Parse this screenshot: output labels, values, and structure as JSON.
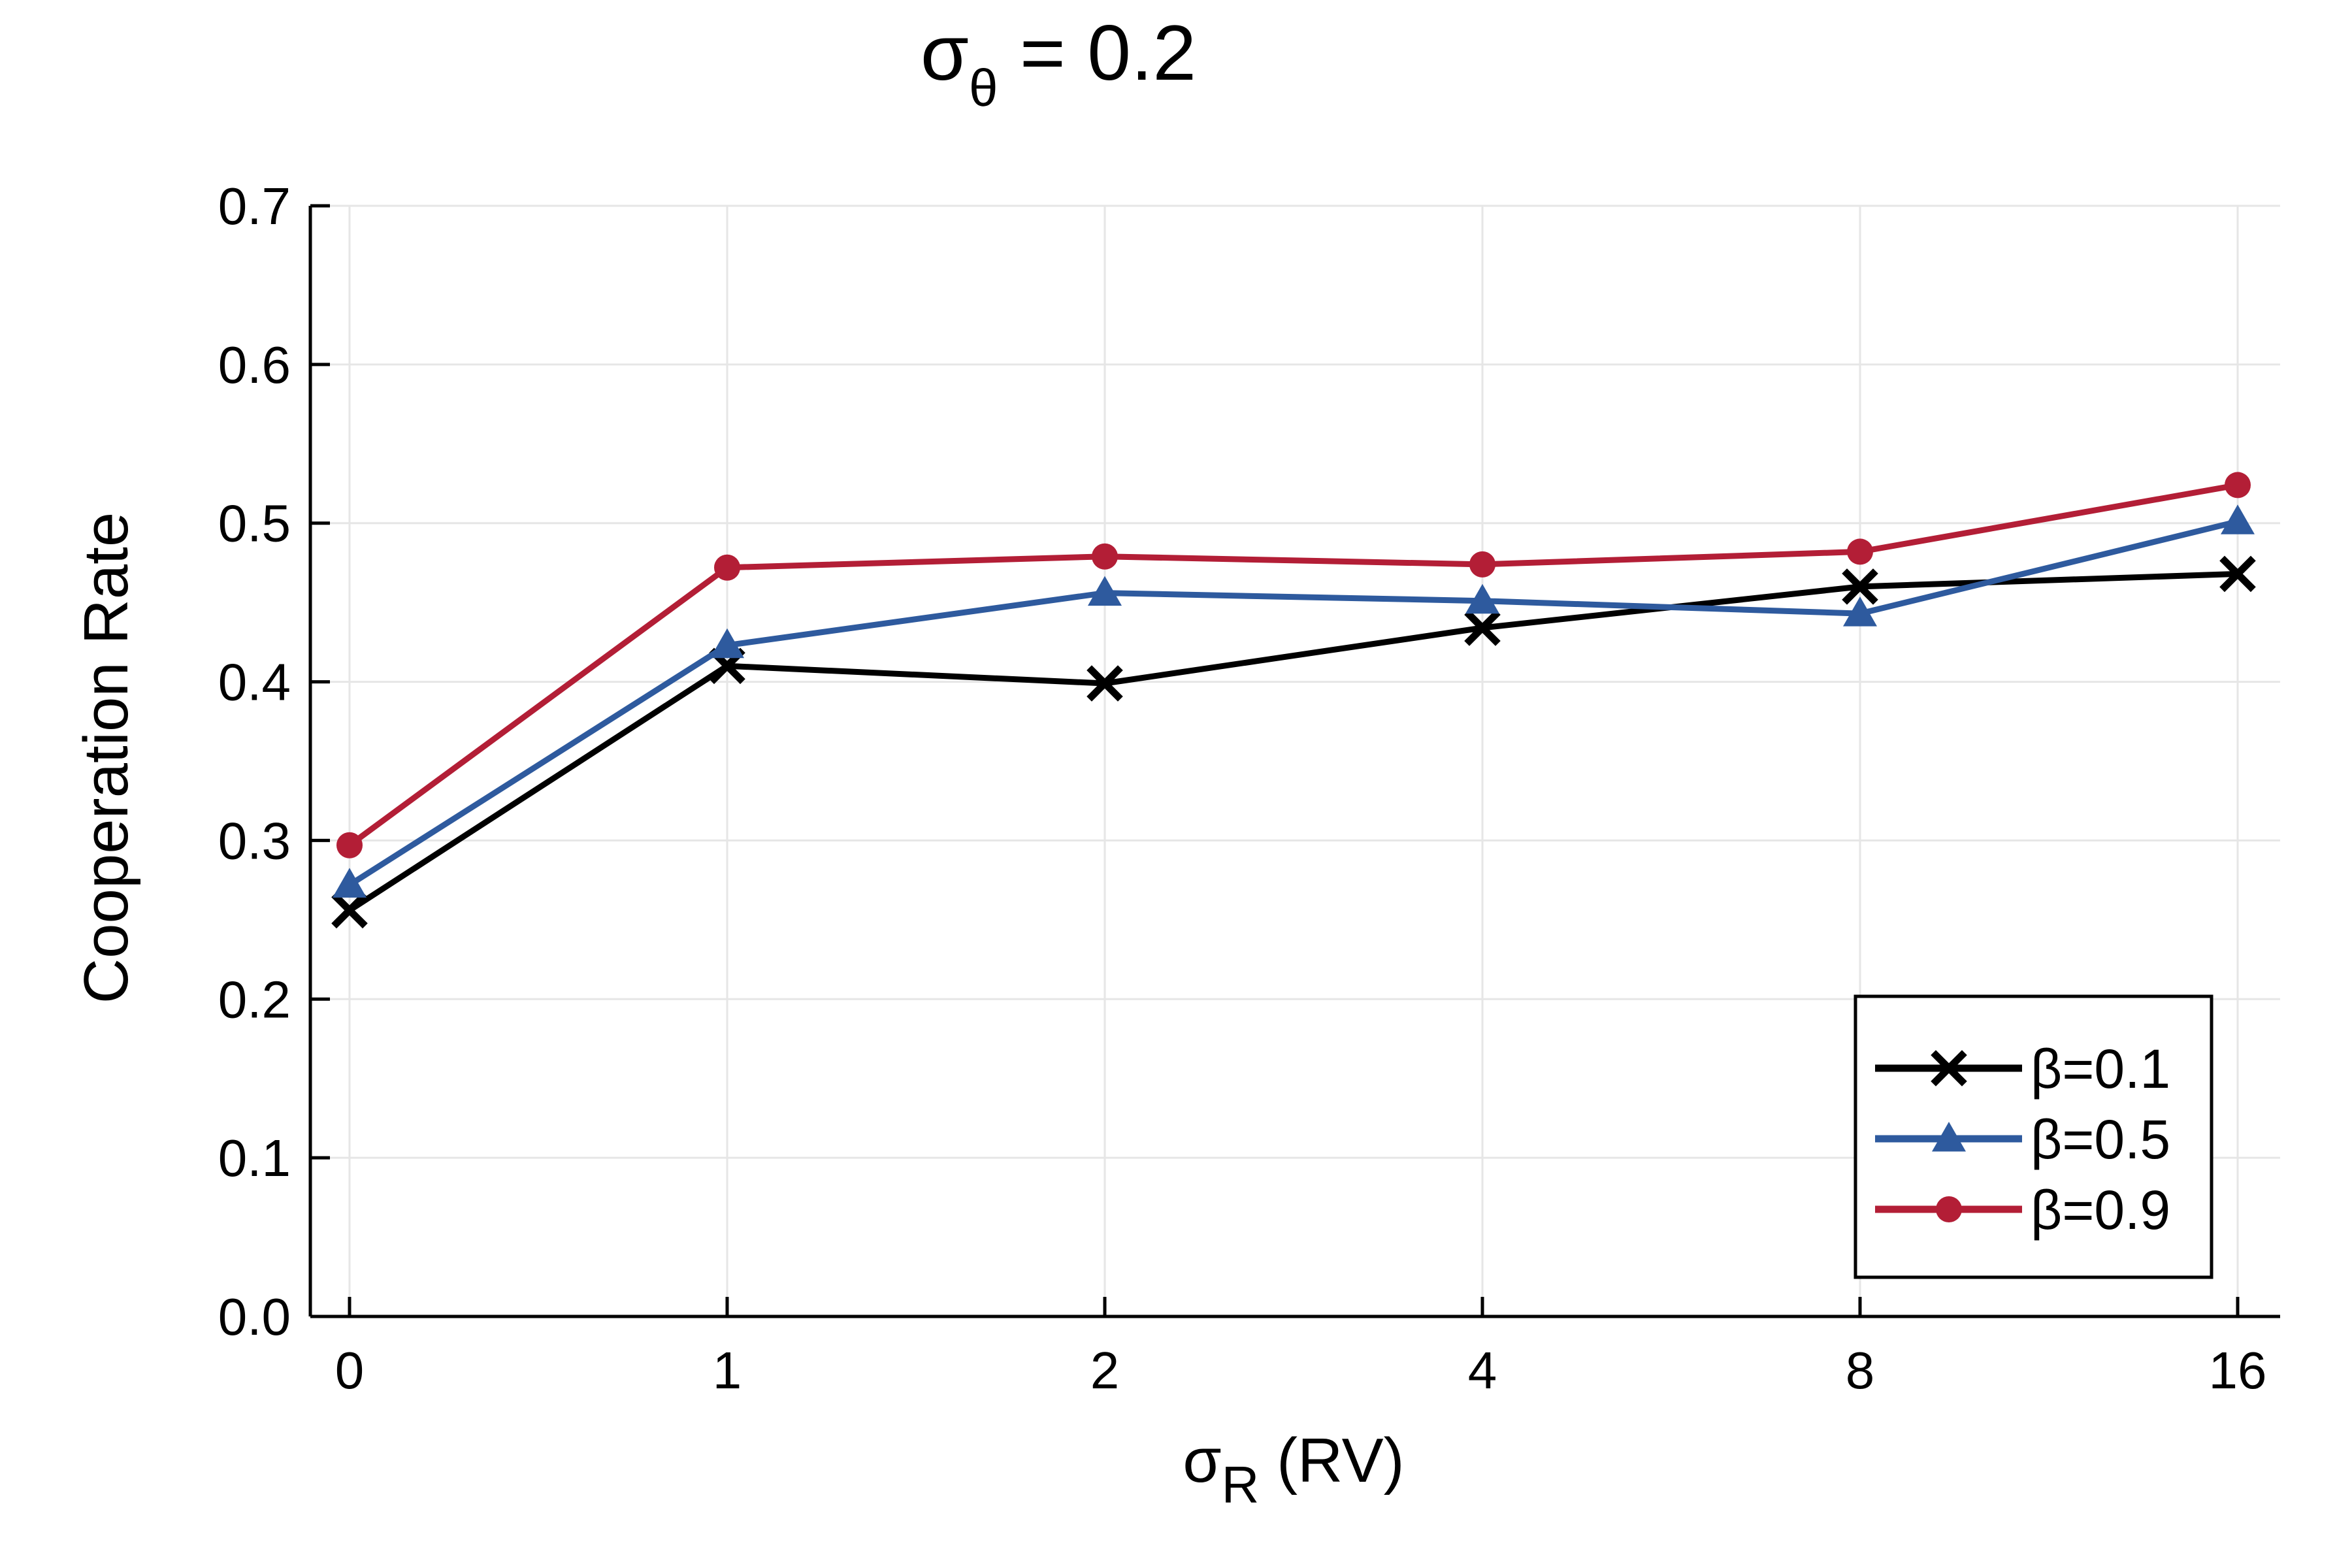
{
  "chart_data": {
    "type": "line",
    "title": "σθ = 0.2",
    "title_main": "σ",
    "title_sub": "θ",
    "title_rest": " = 0.2",
    "xlabel": "σR (RV)",
    "xlabel_main": "σ",
    "xlabel_sub": "R",
    "xlabel_rest": " (RV)",
    "ylabel": "Cooperation Rate",
    "categories": [
      "0",
      "1",
      "2",
      "4",
      "8",
      "16"
    ],
    "ylim": [
      0.0,
      0.7
    ],
    "yticks": [
      "0.0",
      "0.1",
      "0.2",
      "0.3",
      "0.4",
      "0.5",
      "0.6",
      "0.7"
    ],
    "grid": true,
    "legend_position": "bottom-right",
    "series": [
      {
        "name": "β=0.1",
        "color": "#000000",
        "marker": "x-mark",
        "values": [
          0.256,
          0.41,
          0.399,
          0.434,
          0.46,
          0.468
        ]
      },
      {
        "name": "β=0.5",
        "color": "#2e5a9e",
        "marker": "triangle",
        "values": [
          0.272,
          0.423,
          0.456,
          0.451,
          0.443,
          0.501
        ]
      },
      {
        "name": "β=0.9",
        "color": "#b31e36",
        "marker": "circle",
        "values": [
          0.297,
          0.472,
          0.479,
          0.474,
          0.482,
          0.524
        ]
      }
    ]
  }
}
